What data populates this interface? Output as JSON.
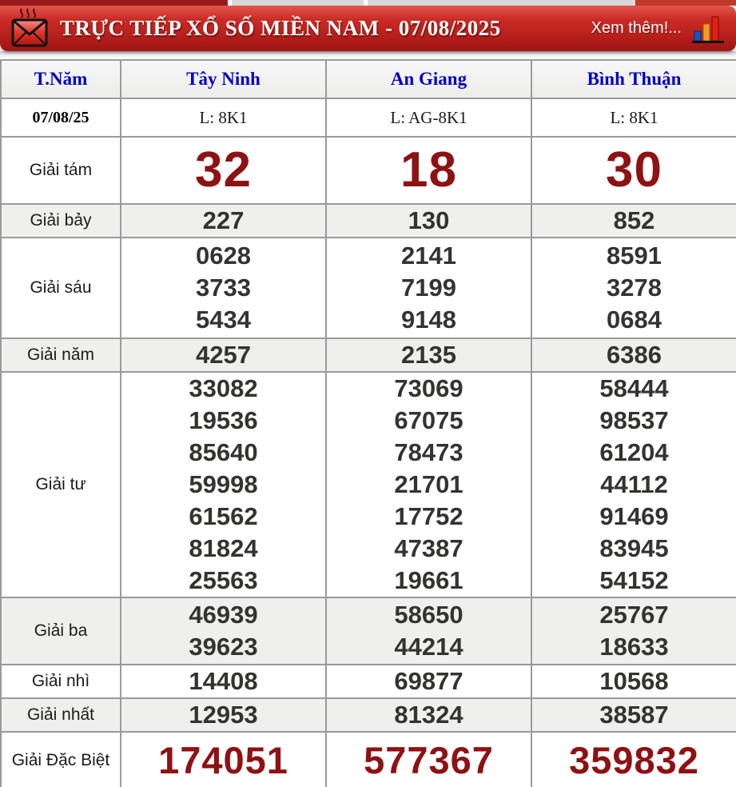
{
  "header": {
    "title": "TRỰC TIẾP XỔ SỐ MIỀN NAM - 07/08/2025",
    "more_link": "Xem thêm!...",
    "envelope_icon": "envelope-icon",
    "chart_icon": "bar-chart-icon",
    "colors": {
      "bar_red": "#c62828",
      "maroon_numbers": "#8e1113",
      "header_link_blue": "#0000cc"
    }
  },
  "table": {
    "columns": [
      "T.Năm",
      "Tây Ninh",
      "An Giang",
      "Bình Thuận"
    ],
    "date_row": {
      "label": "07/08/25",
      "values": [
        "L: 8K1",
        "L: AG-8K1",
        "L: 8K1"
      ]
    },
    "rows": [
      {
        "label": "Giải tám",
        "style": "big-red",
        "values": [
          [
            "32"
          ],
          [
            "18"
          ],
          [
            "30"
          ]
        ]
      },
      {
        "label": "Giải bảy",
        "values": [
          [
            "227"
          ],
          [
            "130"
          ],
          [
            "852"
          ]
        ]
      },
      {
        "label": "Giải sáu",
        "values": [
          [
            "0628",
            "3733",
            "5434"
          ],
          [
            "2141",
            "7199",
            "9148"
          ],
          [
            "8591",
            "3278",
            "0684"
          ]
        ]
      },
      {
        "label": "Giải năm",
        "values": [
          [
            "4257"
          ],
          [
            "2135"
          ],
          [
            "6386"
          ]
        ]
      },
      {
        "label": "Giải tư",
        "values": [
          [
            "33082",
            "19536",
            "85640",
            "59998",
            "61562",
            "81824",
            "25563"
          ],
          [
            "73069",
            "67075",
            "78473",
            "21701",
            "17752",
            "47387",
            "19661"
          ],
          [
            "58444",
            "98537",
            "61204",
            "44112",
            "91469",
            "83945",
            "54152"
          ]
        ]
      },
      {
        "label": "Giải ba",
        "values": [
          [
            "46939",
            "39623"
          ],
          [
            "58650",
            "44214"
          ],
          [
            "25767",
            "18633"
          ]
        ]
      },
      {
        "label": "Giải nhì",
        "values": [
          [
            "14408"
          ],
          [
            "69877"
          ],
          [
            "10568"
          ]
        ]
      },
      {
        "label": "Giải nhất",
        "values": [
          [
            "12953"
          ],
          [
            "81324"
          ],
          [
            "38587"
          ]
        ]
      },
      {
        "label": "Giải Đặc Biệt",
        "style": "special-red",
        "values": [
          [
            "174051"
          ],
          [
            "577367"
          ],
          [
            "359832"
          ]
        ]
      }
    ]
  }
}
